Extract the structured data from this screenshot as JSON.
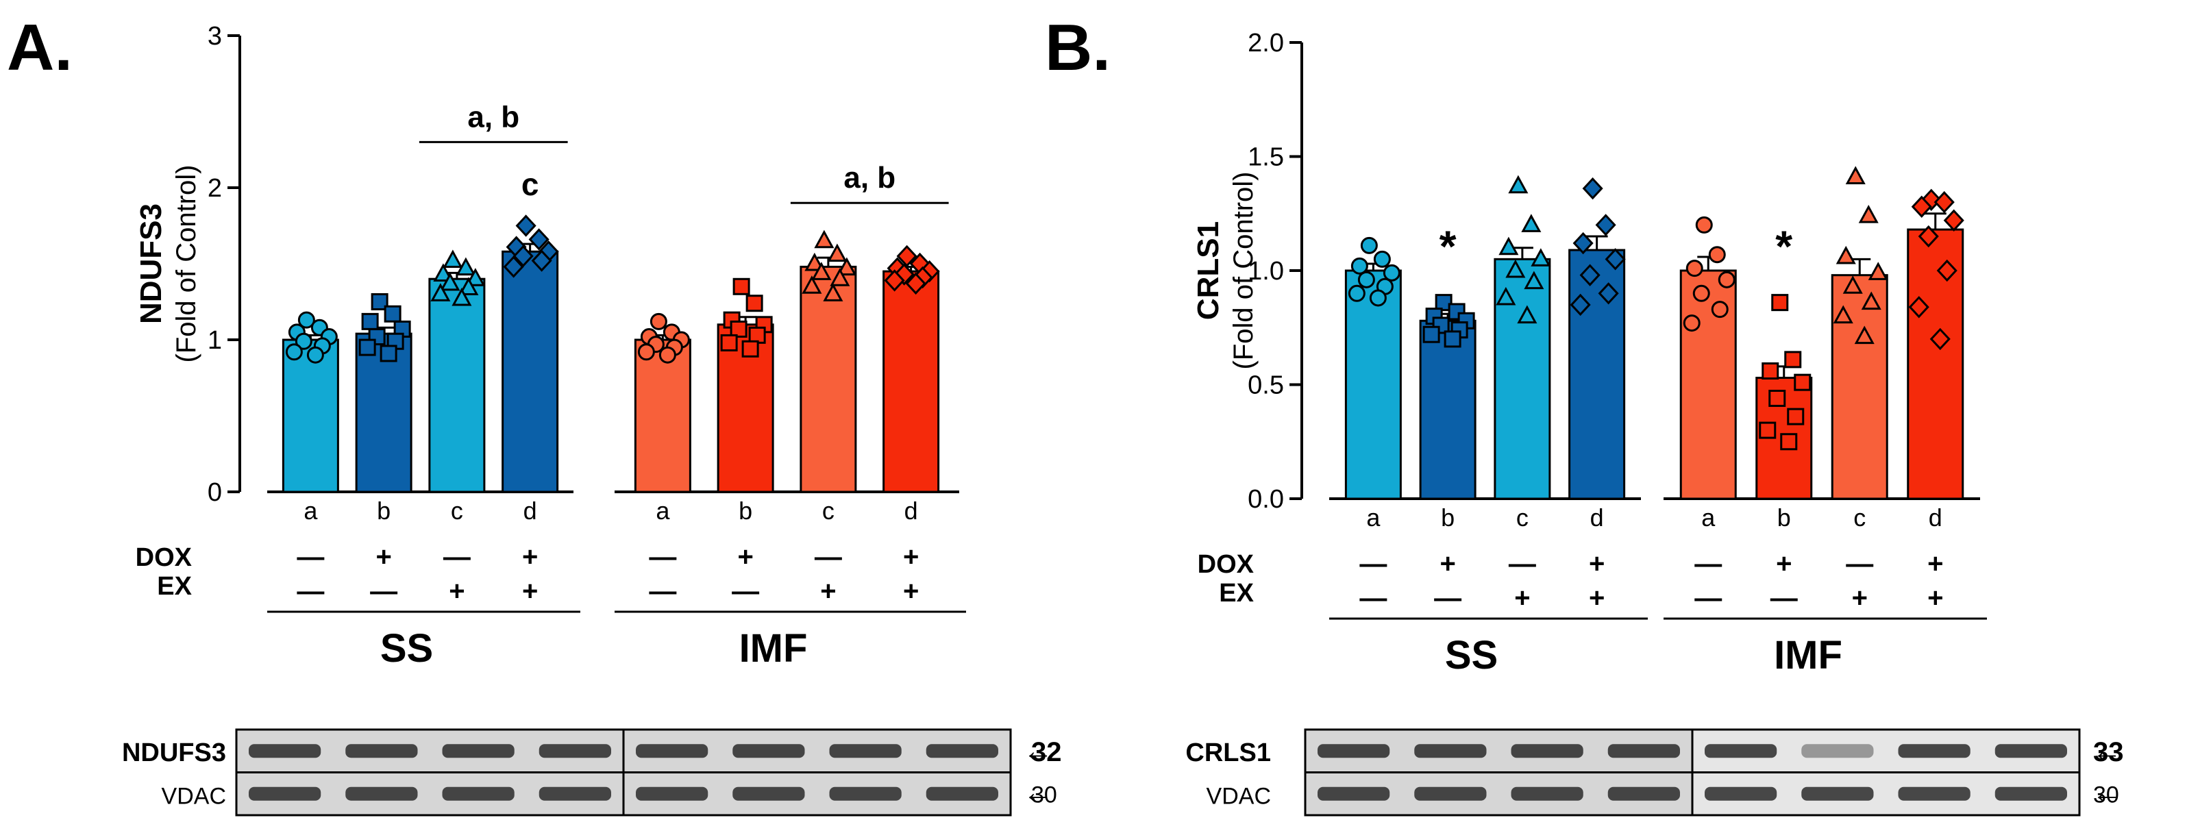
{
  "colors": {
    "ss_light": "#12a9d3",
    "ss_dark": "#0b60a8",
    "imf_light": "#f8603a",
    "imf_dark": "#f52a0b",
    "axis": "#000000"
  },
  "chart_data": [
    {
      "panel": "A.",
      "type": "bar",
      "ylabel": "NDUFS3",
      "ylabel_sub": "(Fold of Control)",
      "ylim": [
        0,
        3
      ],
      "yticks": [
        "0",
        "1",
        "2",
        "3"
      ],
      "yticks_values": [
        0,
        1,
        2,
        3
      ],
      "groups": [
        {
          "name": "SS",
          "categories": [
            "a",
            "b",
            "c",
            "d"
          ],
          "dox": [
            "—",
            "+",
            "—",
            "+"
          ],
          "ex": [
            "—",
            "—",
            "+",
            "+"
          ],
          "values": [
            1.0,
            1.04,
            1.4,
            1.58
          ],
          "errors": [
            0.03,
            0.04,
            0.04,
            0.05
          ],
          "markers": [
            "circle",
            "square",
            "triangle",
            "diamond"
          ],
          "points": [
            [
              1.13,
              1.08,
              1.05,
              1.02,
              0.99,
              0.96,
              0.92,
              0.9
            ],
            [
              1.25,
              1.17,
              1.12,
              1.07,
              1.02,
              0.99,
              0.95,
              0.91
            ],
            [
              1.52,
              1.47,
              1.43,
              1.4,
              1.37,
              1.34,
              1.3,
              1.27
            ],
            [
              1.75,
              1.66,
              1.61,
              1.58,
              1.55,
              1.52,
              1.48
            ]
          ]
        },
        {
          "name": "IMF",
          "categories": [
            "a",
            "b",
            "c",
            "d"
          ],
          "dox": [
            "—",
            "+",
            "—",
            "+"
          ],
          "ex": [
            "—",
            "—",
            "+",
            "+"
          ],
          "values": [
            1.0,
            1.1,
            1.48,
            1.45
          ],
          "errors": [
            0.03,
            0.05,
            0.06,
            0.03
          ],
          "markers": [
            "circle",
            "square",
            "triangle",
            "diamond"
          ],
          "points": [
            [
              1.12,
              1.05,
              1.02,
              1.0,
              0.97,
              0.95,
              0.92,
              0.9
            ],
            [
              1.35,
              1.24,
              1.13,
              1.1,
              1.07,
              1.03,
              0.98,
              0.94
            ],
            [
              1.65,
              1.56,
              1.5,
              1.47,
              1.44,
              1.4,
              1.35,
              1.3
            ],
            [
              1.55,
              1.5,
              1.47,
              1.45,
              1.43,
              1.41,
              1.39,
              1.37
            ]
          ]
        }
      ],
      "annotations": [
        {
          "text": "a, b",
          "group": 0,
          "from": 2,
          "to": 3,
          "bracket": true,
          "y": 2.3
        },
        {
          "text": "c",
          "group": 0,
          "bar": 3,
          "y": 1.95
        },
        {
          "text": "a, b",
          "group": 1,
          "from": 2,
          "to": 3,
          "bracket": true,
          "y": 1.9
        }
      ],
      "row_labels": {
        "dox": "DOX",
        "ex": "EX"
      },
      "blot": {
        "protein": "NDUFS3",
        "protein_kda": "32",
        "loading": "VDAC",
        "loading_kda": "30",
        "arrow": "←"
      }
    },
    {
      "panel": "B.",
      "type": "bar",
      "ylabel": "CRLS1",
      "ylabel_sub": "(Fold of Control)",
      "ylim": [
        0,
        2.0
      ],
      "yticks": [
        "0.0",
        "0.5",
        "1.0",
        "1.5",
        "2.0"
      ],
      "yticks_values": [
        0,
        0.5,
        1.0,
        1.5,
        2.0
      ],
      "groups": [
        {
          "name": "SS",
          "categories": [
            "a",
            "b",
            "c",
            "d"
          ],
          "dox": [
            "—",
            "+",
            "—",
            "+"
          ],
          "ex": [
            "—",
            "—",
            "+",
            "+"
          ],
          "values": [
            1.0,
            0.78,
            1.05,
            1.09
          ],
          "errors": [
            0.03,
            0.03,
            0.05,
            0.06
          ],
          "markers": [
            "circle",
            "square",
            "triangle",
            "diamond"
          ],
          "points": [
            [
              1.11,
              1.05,
              1.02,
              0.99,
              0.96,
              0.93,
              0.9,
              0.88
            ],
            [
              0.86,
              0.82,
              0.8,
              0.78,
              0.76,
              0.74,
              0.72,
              0.7
            ],
            [
              1.37,
              1.2,
              1.1,
              1.05,
              1.0,
              0.95,
              0.88,
              0.8
            ],
            [
              1.36,
              1.2,
              1.12,
              1.05,
              0.98,
              0.9,
              0.85
            ]
          ]
        },
        {
          "name": "IMF",
          "categories": [
            "a",
            "b",
            "c",
            "d"
          ],
          "dox": [
            "—",
            "+",
            "—",
            "+"
          ],
          "ex": [
            "—",
            "—",
            "+",
            "+"
          ],
          "values": [
            1.0,
            0.53,
            0.98,
            1.18
          ],
          "errors": [
            0.06,
            0.05,
            0.07,
            0.07
          ],
          "markers": [
            "circle",
            "square",
            "triangle",
            "diamond"
          ],
          "points": [
            [
              1.2,
              1.07,
              1.01,
              0.96,
              0.9,
              0.83,
              0.77
            ],
            [
              0.86,
              0.61,
              0.56,
              0.51,
              0.44,
              0.36,
              0.3,
              0.25
            ],
            [
              1.41,
              1.24,
              1.06,
              0.99,
              0.93,
              0.86,
              0.8,
              0.71
            ],
            [
              1.31,
              1.3,
              1.28,
              1.22,
              1.15,
              1.0,
              0.84,
              0.7
            ]
          ]
        }
      ],
      "annotations": [
        {
          "text": "*",
          "group": 0,
          "bar": 1,
          "y": 1.04
        },
        {
          "text": "*",
          "group": 1,
          "bar": 1,
          "y": 1.04
        }
      ],
      "row_labels": {
        "dox": "DOX",
        "ex": "EX"
      },
      "blot": {
        "protein": "CRLS1",
        "protein_kda": "33",
        "loading": "VDAC",
        "loading_kda": "30",
        "arrow": "←"
      }
    }
  ]
}
